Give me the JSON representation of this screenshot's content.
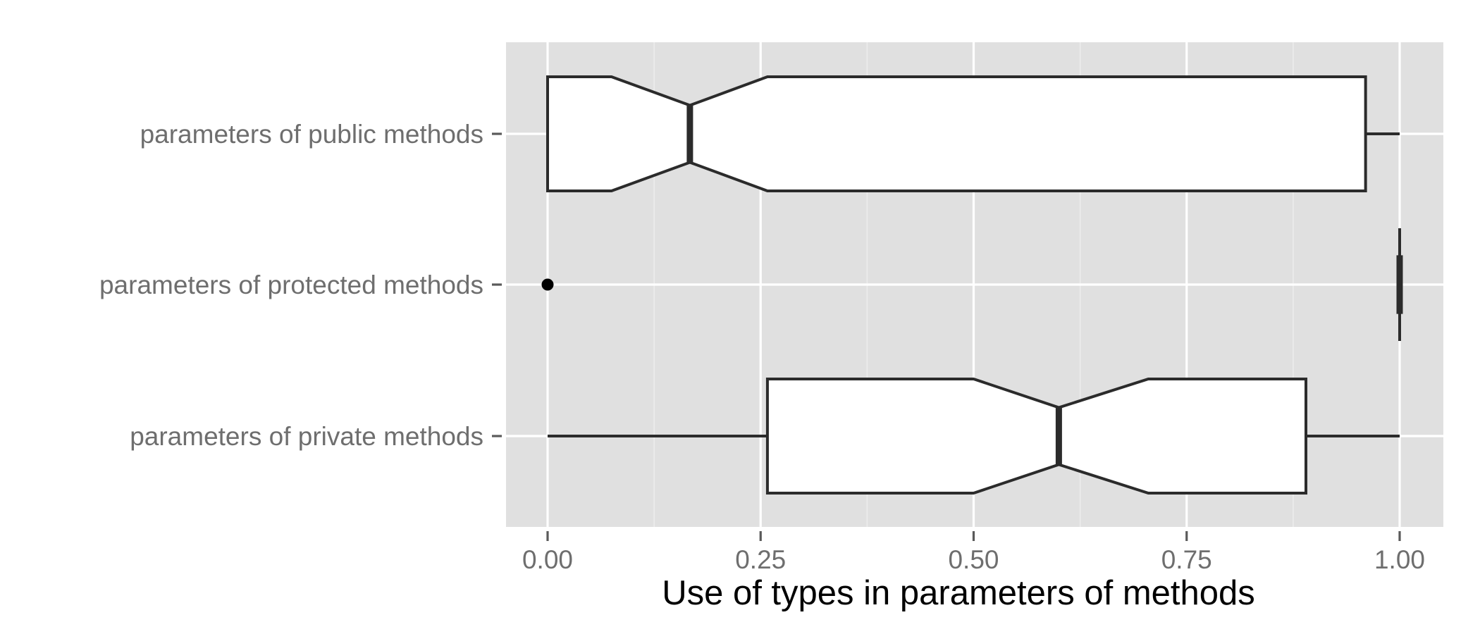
{
  "chart_data": {
    "type": "boxplot",
    "orientation": "horizontal",
    "xlabel": "Use of types in parameters of methods",
    "ylabel": "",
    "xlim": [
      -0.05,
      1.05
    ],
    "x_ticks": [
      0.0,
      0.25,
      0.5,
      0.75,
      1.0
    ],
    "x_tick_labels": [
      "0.00",
      "0.25",
      "0.50",
      "0.75",
      "1.00"
    ],
    "notched": true,
    "grid": true,
    "legend": "none",
    "categories": [
      "parameters of public methods",
      "parameters of protected methods",
      "parameters of private methods"
    ],
    "boxes": [
      {
        "category": "parameters of public methods",
        "whisker_low": 0.0,
        "q1": 0.0,
        "notch_low": 0.075,
        "median": 0.167,
        "notch_high": 0.258,
        "q3": 0.96,
        "whisker_high": 1.0,
        "outliers": []
      },
      {
        "category": "parameters of protected methods",
        "whisker_low": 1.0,
        "q1": 1.0,
        "notch_low": 1.0,
        "median": 1.0,
        "notch_high": 1.0,
        "q3": 1.0,
        "whisker_high": 1.0,
        "outliers": [
          0.0
        ]
      },
      {
        "category": "parameters of private methods",
        "whisker_low": 0.0,
        "q1": 0.258,
        "notch_low": 0.5,
        "median": 0.6,
        "notch_high": 0.705,
        "q3": 0.89,
        "whisker_high": 1.0,
        "outliers": []
      }
    ],
    "colors": {
      "panel": "#e0e0e0",
      "box_fill": "#ffffff",
      "box_line": "#2b2b2b",
      "text": "#6e6e6e",
      "title": "#000000"
    }
  }
}
